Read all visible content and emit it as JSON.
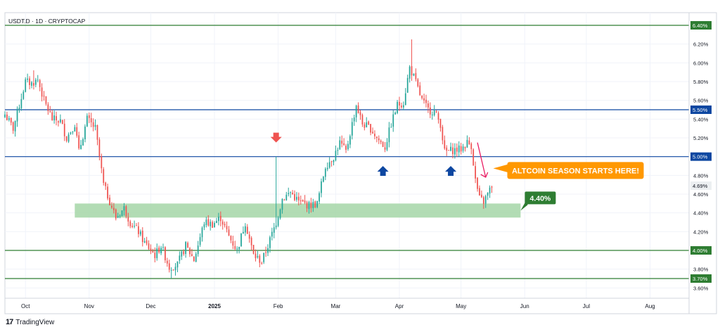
{
  "header": {
    "symbol_label": "USDT.D · 1D · CRYPTOCAP"
  },
  "branding": {
    "logo_text": "17",
    "name": "TradingView"
  },
  "colors": {
    "up": "#26a69a",
    "down": "#ef5350",
    "green_line": "#2e7d32",
    "blue_line": "#0d47a1",
    "zone": "#a5d6a7",
    "callout": "#ff9800",
    "pink_arrow": "#e91e63",
    "red_arrow": "#ef5350",
    "blue_arrow": "#0d47a1",
    "last_price_bg": "#eceff1"
  },
  "annotations": {
    "callout_text": "ALTCOIN SEASON STARTS HERE!",
    "zone_label": "4.40%"
  },
  "chart_data": {
    "type": "candlestick",
    "title": "USDT.D · 1D · CRYPTOCAP",
    "x_tick_labels": [
      "Oct",
      "Nov",
      "Dec",
      "2025",
      "Feb",
      "Mar",
      "Apr",
      "May",
      "Jun",
      "Jul",
      "Aug"
    ],
    "x_tick_dates": [
      "2024-10-01",
      "2024-11-01",
      "2024-12-01",
      "2025-01-01",
      "2025-02-01",
      "2025-03-01",
      "2025-04-01",
      "2025-05-01",
      "2025-06-01",
      "2025-07-01",
      "2025-08-01"
    ],
    "y_tick_labels": [
      "6.20%",
      "6.00%",
      "5.80%",
      "5.60%",
      "5.40%",
      "5.20%",
      "4.80%",
      "4.60%",
      "4.40%",
      "4.20%",
      "3.80%",
      "3.60%"
    ],
    "y_ticks": [
      6.2,
      6.0,
      5.8,
      5.6,
      5.4,
      5.2,
      4.8,
      4.6,
      4.4,
      4.2,
      3.8,
      3.6
    ],
    "ylim": [
      3.5,
      6.5
    ],
    "x_range": [
      "2024-09-21",
      "2025-08-20"
    ],
    "last_price": {
      "value": 4.69,
      "label": "4.69%"
    },
    "levels": [
      {
        "value": 6.4,
        "label": "6.40%",
        "kind": "green"
      },
      {
        "value": 5.5,
        "label": "5.50%",
        "kind": "blue"
      },
      {
        "value": 5.0,
        "label": "5.00%",
        "kind": "blue"
      },
      {
        "value": 4.0,
        "label": "4.00%",
        "kind": "green"
      },
      {
        "value": 3.7,
        "label": "3.70%",
        "kind": "green"
      }
    ],
    "zone": {
      "from_date": "2024-10-25",
      "to_date": "2025-05-30",
      "low": 4.35,
      "high": 4.5,
      "label": "4.40%"
    },
    "markers": [
      {
        "date": "2025-01-31",
        "value": 5.15,
        "kind": "down-arrow",
        "color": "red"
      },
      {
        "date": "2025-03-24",
        "value": 4.9,
        "kind": "up-arrow",
        "color": "blue"
      },
      {
        "date": "2025-04-26",
        "value": 4.9,
        "kind": "up-arrow",
        "color": "blue"
      }
    ],
    "pink_arrow": {
      "from_date": "2025-05-09",
      "from_value": 5.15,
      "to_date": "2025-05-13",
      "to_value": 4.78
    },
    "callout": {
      "anchor_date": "2025-05-16",
      "value": 4.86,
      "text": "ALTCOIN SEASON STARTS HERE!"
    },
    "series": [
      {
        "name": "USDT.D",
        "anchors": [
          [
            "2024-09-21",
            5.45
          ],
          [
            "2024-09-25",
            5.3
          ],
          [
            "2024-10-01",
            5.8
          ],
          [
            "2024-10-04",
            5.78
          ],
          [
            "2024-10-07",
            5.82
          ],
          [
            "2024-10-10",
            5.6
          ],
          [
            "2024-10-14",
            5.4
          ],
          [
            "2024-10-18",
            5.38
          ],
          [
            "2024-10-21",
            5.2
          ],
          [
            "2024-10-25",
            5.35
          ],
          [
            "2024-10-27",
            5.05
          ],
          [
            "2024-10-31",
            5.4
          ],
          [
            "2024-11-04",
            5.3
          ],
          [
            "2024-11-08",
            4.7
          ],
          [
            "2024-11-14",
            4.35
          ],
          [
            "2024-11-18",
            4.45
          ],
          [
            "2024-11-21",
            4.3
          ],
          [
            "2024-11-25",
            4.2
          ],
          [
            "2024-11-28",
            4.08
          ],
          [
            "2024-12-03",
            3.95
          ],
          [
            "2024-12-06",
            4.05
          ],
          [
            "2024-12-10",
            3.82
          ],
          [
            "2024-12-14",
            3.85
          ],
          [
            "2024-12-18",
            4.05
          ],
          [
            "2024-12-22",
            3.9
          ],
          [
            "2024-12-27",
            4.3
          ],
          [
            "2024-12-31",
            4.28
          ],
          [
            "2025-01-04",
            4.35
          ],
          [
            "2025-01-08",
            4.15
          ],
          [
            "2025-01-12",
            4.0
          ],
          [
            "2025-01-16",
            4.3
          ],
          [
            "2025-01-20",
            3.95
          ],
          [
            "2025-01-24",
            3.88
          ],
          [
            "2025-01-27",
            4.05
          ],
          [
            "2025-01-31",
            4.3
          ],
          [
            "2025-02-03",
            4.55
          ],
          [
            "2025-02-07",
            4.62
          ],
          [
            "2025-02-11",
            4.52
          ],
          [
            "2025-02-16",
            4.48
          ],
          [
            "2025-02-20",
            4.5
          ],
          [
            "2025-02-24",
            4.9
          ],
          [
            "2025-02-28",
            5.0
          ],
          [
            "2025-03-03",
            5.15
          ],
          [
            "2025-03-06",
            5.05
          ],
          [
            "2025-03-09",
            5.35
          ],
          [
            "2025-03-11",
            5.55
          ],
          [
            "2025-03-14",
            5.35
          ],
          [
            "2025-03-18",
            5.3
          ],
          [
            "2025-03-21",
            5.2
          ],
          [
            "2025-03-25",
            5.1
          ],
          [
            "2025-03-28",
            5.35
          ],
          [
            "2025-03-31",
            5.55
          ],
          [
            "2025-04-03",
            5.58
          ],
          [
            "2025-04-06",
            5.95
          ],
          [
            "2025-04-08",
            5.85
          ],
          [
            "2025-04-12",
            5.6
          ],
          [
            "2025-04-15",
            5.5
          ],
          [
            "2025-04-18",
            5.48
          ],
          [
            "2025-04-21",
            5.35
          ],
          [
            "2025-04-23",
            5.05
          ],
          [
            "2025-04-27",
            5.07
          ],
          [
            "2025-05-01",
            5.08
          ],
          [
            "2025-05-04",
            5.15
          ],
          [
            "2025-05-06",
            5.12
          ],
          [
            "2025-05-08",
            4.75
          ],
          [
            "2025-05-10",
            4.55
          ],
          [
            "2025-05-12",
            4.52
          ],
          [
            "2025-05-14",
            4.6
          ],
          [
            "2025-05-16",
            4.69
          ]
        ]
      }
    ]
  }
}
